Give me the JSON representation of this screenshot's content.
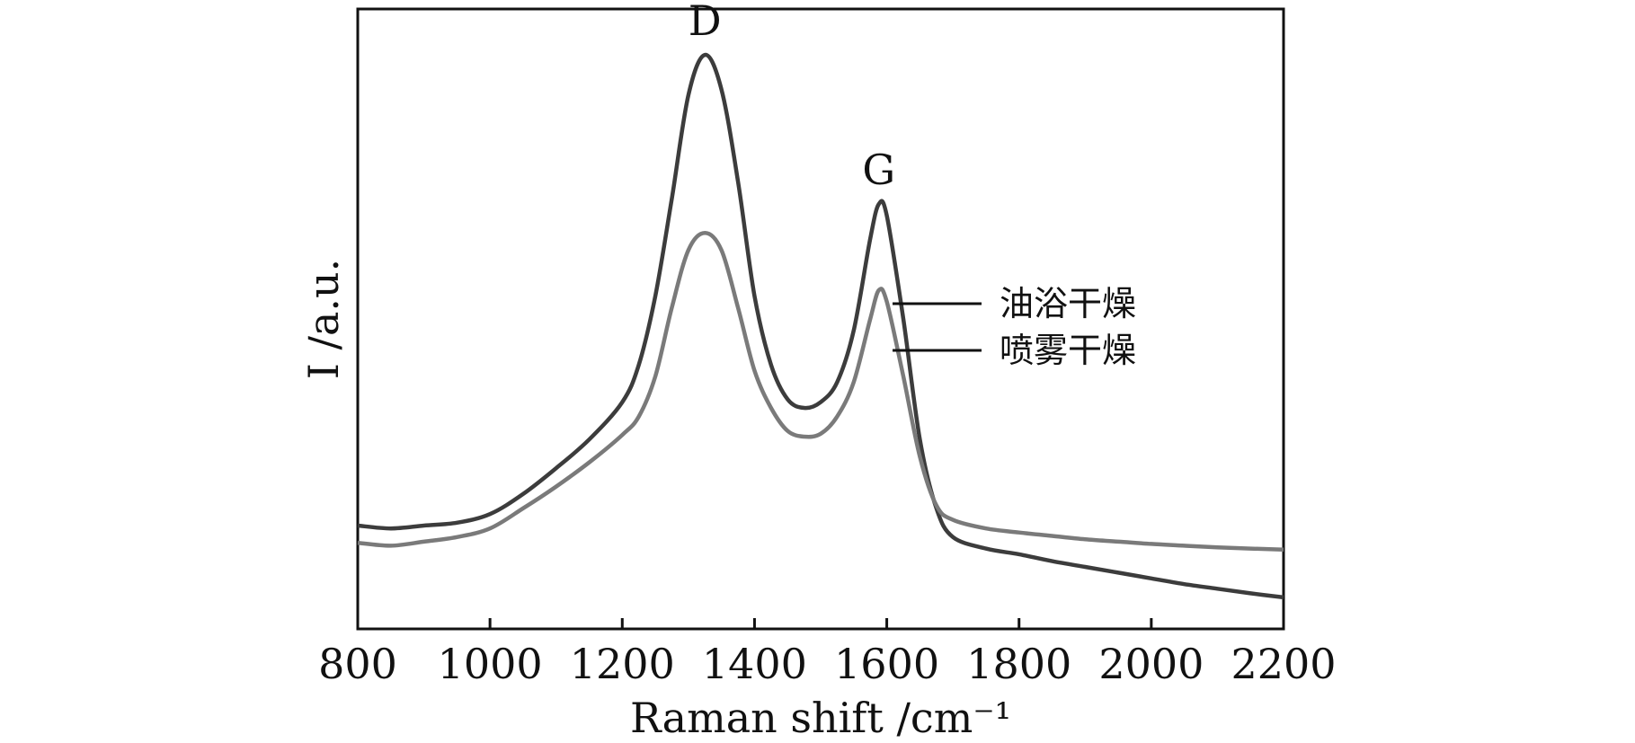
{
  "chart_data": {
    "type": "line",
    "xlabel": "Raman shift /cm⁻¹",
    "ylabel": "I /a.u.",
    "xlim": [
      800,
      2200
    ],
    "x_ticks": [
      800,
      1000,
      1200,
      1400,
      1600,
      1800,
      2000,
      2200
    ],
    "y_ticks_shown": false,
    "grid": false,
    "legend_position": "right (labels with leader lines to curves)",
    "annotations": [
      {
        "text": "D",
        "x": 1325
      },
      {
        "text": "G",
        "x": 1588
      }
    ],
    "colors": {
      "series_1": "#3c3c3c",
      "series_2": "#7a7a7a"
    },
    "x": [
      800,
      850,
      900,
      950,
      1000,
      1050,
      1100,
      1150,
      1200,
      1225,
      1250,
      1275,
      1300,
      1325,
      1350,
      1375,
      1400,
      1425,
      1450,
      1475,
      1500,
      1525,
      1550,
      1575,
      1588,
      1600,
      1625,
      1650,
      1675,
      1700,
      1750,
      1800,
      1850,
      1900,
      1950,
      2000,
      2050,
      2100,
      2150,
      2200
    ],
    "series": [
      {
        "name": "油浴干燥",
        "values": [
          0.18,
          0.175,
          0.18,
          0.185,
          0.2,
          0.235,
          0.28,
          0.33,
          0.395,
          0.46,
          0.58,
          0.75,
          0.93,
          1.0,
          0.94,
          0.78,
          0.58,
          0.46,
          0.4,
          0.385,
          0.395,
          0.43,
          0.52,
          0.68,
          0.74,
          0.72,
          0.54,
          0.33,
          0.21,
          0.16,
          0.14,
          0.13,
          0.118,
          0.108,
          0.098,
          0.088,
          0.078,
          0.07,
          0.062,
          0.055
        ]
      },
      {
        "name": "喷雾干燥",
        "values": [
          0.15,
          0.145,
          0.152,
          0.16,
          0.175,
          0.21,
          0.248,
          0.29,
          0.338,
          0.37,
          0.44,
          0.56,
          0.66,
          0.69,
          0.66,
          0.56,
          0.45,
          0.385,
          0.345,
          0.335,
          0.34,
          0.37,
          0.43,
          0.54,
          0.59,
          0.57,
          0.44,
          0.3,
          0.215,
          0.19,
          0.175,
          0.168,
          0.162,
          0.156,
          0.152,
          0.148,
          0.145,
          0.142,
          0.14,
          0.138
        ]
      }
    ]
  }
}
